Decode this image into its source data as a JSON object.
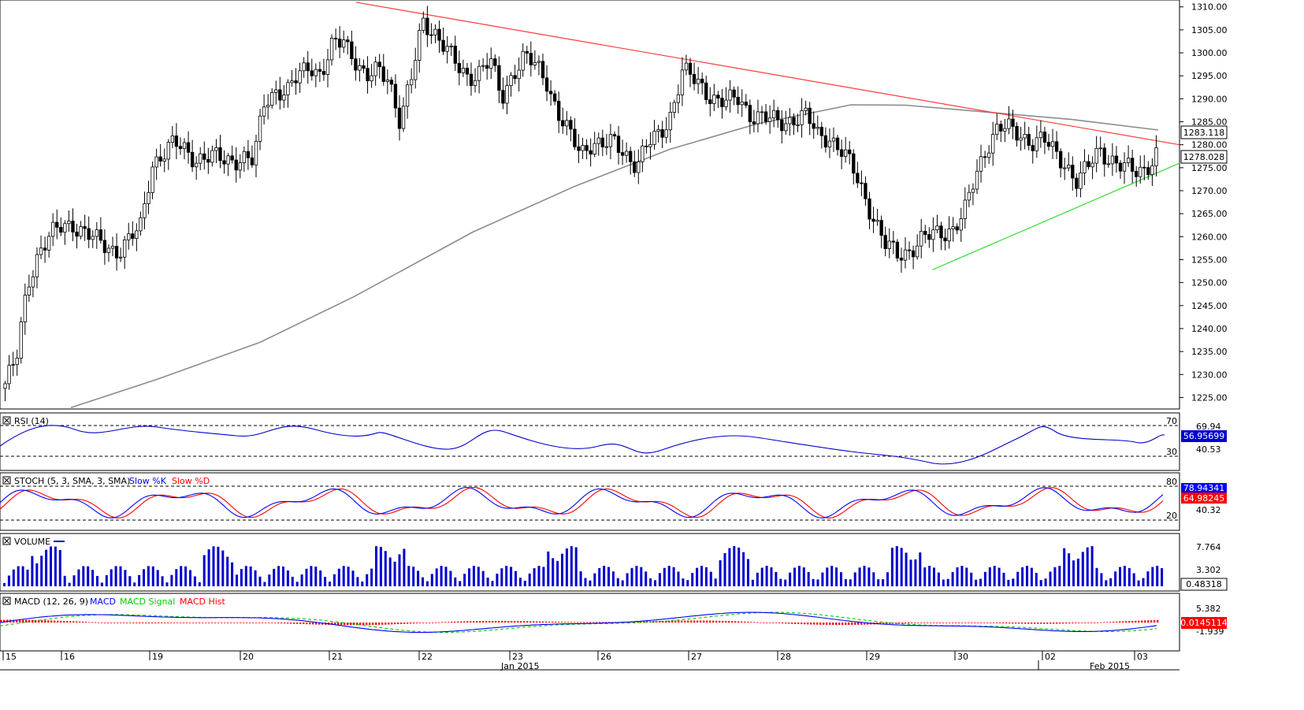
{
  "chart_data": [
    {
      "type": "candlestick",
      "panel": "price",
      "ylim": [
        1222.5,
        1311.5
      ],
      "y_ticks": [
        "1310.00",
        "1305.00",
        "1300.00",
        "1295.00",
        "1290.00",
        "1285.00",
        "1280.00",
        "1275.00",
        "1270.00",
        "1265.00",
        "1260.00",
        "1255.00",
        "1250.00",
        "1245.00",
        "1240.00",
        "1235.00",
        "1230.00",
        "1225.00"
      ],
      "series": [
        {
          "name": "close",
          "values": [
            1228,
            1233,
            1250,
            1257,
            1260,
            1262,
            1263,
            1261,
            1259,
            1258,
            1257,
            1259,
            1262,
            1276,
            1278,
            1280,
            1279,
            1277,
            1277,
            1277,
            1277,
            1277,
            1276,
            1290,
            1292,
            1291,
            1295,
            1298,
            1295,
            1301,
            1303,
            1299,
            1294,
            1296,
            1295,
            1285,
            1294,
            1307,
            1305,
            1301,
            1297,
            1295,
            1296,
            1298,
            1290,
            1296,
            1299,
            1297,
            1294,
            1287,
            1282,
            1278,
            1281,
            1280,
            1280,
            1278,
            1276,
            1280,
            1282,
            1287,
            1296,
            1294,
            1292,
            1290,
            1289,
            1290,
            1287,
            1286,
            1285,
            1285,
            1286,
            1286,
            1282,
            1282,
            1279,
            1275,
            1270,
            1264,
            1258,
            1256,
            1257,
            1259,
            1260,
            1261,
            1262,
            1265,
            1273,
            1280,
            1284,
            1283,
            1282,
            1281,
            1281,
            1278,
            1276,
            1272,
            1275,
            1279,
            1277,
            1275,
            1274,
            1275,
            1278
          ]
        },
        {
          "name": "trendline_resistance",
          "values": [
            [
              0.3,
              1311.0
            ],
            [
              1.0,
              1280.0
            ]
          ]
        },
        {
          "name": "trendline_support",
          "values": [
            [
              0.79,
              1252.8
            ],
            [
              1.0,
              1276.0
            ]
          ]
        }
      ],
      "last_price_label": "1278.028",
      "sma_label": "1283.118"
    },
    {
      "type": "line",
      "panel": "rsi",
      "title": "RSI (14)",
      "levels": [
        "70",
        "30"
      ],
      "scale_label": "40.53",
      "max_label": "69.94",
      "current_label": "56.95699"
    },
    {
      "type": "line",
      "panel": "stoch",
      "title": "STOCH (5, 3, SMA, 3, SMA)",
      "legend": [
        "Slow %K",
        "Slow %D"
      ],
      "levels": [
        "80",
        "20"
      ],
      "scale_label": "40.32",
      "k_label": "78.94341",
      "d_label": "64.98245"
    },
    {
      "type": "bar",
      "panel": "volume",
      "title": "VOLUME",
      "scale_labels": [
        "7.764",
        "3.302"
      ],
      "current_label": "0.48318"
    },
    {
      "type": "line",
      "panel": "macd",
      "title": "MACD (12, 26, 9)",
      "legend": [
        "MACD",
        "MACD Signal",
        "MACD Hist"
      ],
      "scale_labels": [
        "5.382",
        "-1.939"
      ],
      "current_label": "0.0145114"
    }
  ],
  "x_axis": {
    "labels": [
      "15",
      "16",
      "19",
      "20",
      "21",
      "22",
      "23",
      "26",
      "27",
      "28",
      "29",
      "30",
      "02",
      "03"
    ],
    "month_labels": [
      "Jan 2015",
      "Feb 2015"
    ]
  },
  "colors": {
    "candle_up": "#ffffff",
    "candle_down": "#000000",
    "sma": "#8c8c8c",
    "resistance": "#ff3b3b",
    "support": "#33dd33",
    "rsi": "#0000cc",
    "stoch_k": "#0000ff",
    "stoch_d": "#ff0000",
    "volume": "#0000cc",
    "macd": "#0000ff",
    "macd_signal": "#00cc00",
    "macd_hist": "#ff0000"
  }
}
